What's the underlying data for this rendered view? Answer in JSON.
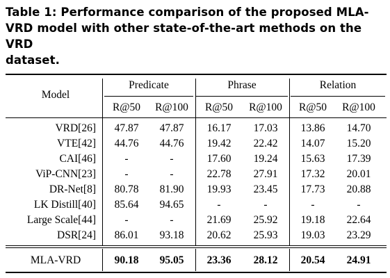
{
  "caption": "Table 1: Performance comparison of the proposed MLA-VRD model with other state-of-the-art methods on the VRD dataset.",
  "caption_lines": [
    "Table 1: Performance comparison of the proposed MLA-",
    "VRD model with other state-of-the-art methods on the VRD",
    "dataset."
  ],
  "header": {
    "model": "Model",
    "groups": [
      "Predicate",
      "Phrase",
      "Relation"
    ],
    "metrics": [
      "R@50",
      "R@100",
      "R@50",
      "R@100",
      "R@50",
      "R@100"
    ]
  },
  "rows": [
    {
      "model": "VRD[26]",
      "values": [
        "47.87",
        "47.87",
        "16.17",
        "17.03",
        "13.86",
        "14.70"
      ]
    },
    {
      "model": "VTE[42]",
      "values": [
        "44.76",
        "44.76",
        "19.42",
        "22.42",
        "14.07",
        "15.20"
      ]
    },
    {
      "model": "CAI[46]",
      "values": [
        "-",
        "-",
        "17.60",
        "19.24",
        "15.63",
        "17.39"
      ]
    },
    {
      "model": "ViP-CNN[23]",
      "values": [
        "-",
        "-",
        "22.78",
        "27.91",
        "17.32",
        "20.01"
      ]
    },
    {
      "model": "DR-Net[8]",
      "values": [
        "80.78",
        "81.90",
        "19.93",
        "23.45",
        "17.73",
        "20.88"
      ]
    },
    {
      "model": "LK Distill[40]",
      "values": [
        "85.64",
        "94.65",
        "-",
        "-",
        "-",
        "-"
      ]
    },
    {
      "model": "Large Scale[44]",
      "values": [
        "-",
        "-",
        "21.69",
        "25.92",
        "19.18",
        "22.64"
      ]
    },
    {
      "model": "DSR[24]",
      "values": [
        "86.01",
        "93.18",
        "20.62",
        "25.93",
        "19.03",
        "23.29"
      ]
    }
  ],
  "final_row": {
    "model": "MLA-VRD",
    "values": [
      "90.18",
      "95.05",
      "23.36",
      "28.12",
      "20.54",
      "24.91"
    ]
  }
}
